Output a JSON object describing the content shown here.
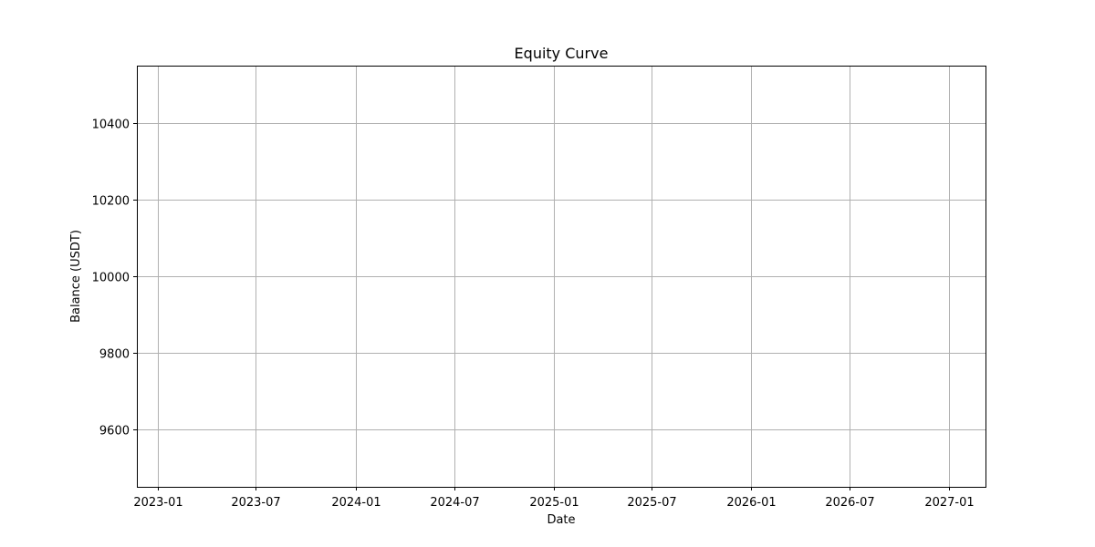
{
  "chart_data": {
    "type": "line",
    "title": "Equity Curve",
    "xlabel": "Date",
    "ylabel": "Balance (USDT)",
    "x_ticks": [
      "2023-01",
      "2023-07",
      "2024-01",
      "2024-07",
      "2025-01",
      "2025-07",
      "2026-01",
      "2026-07",
      "2027-01"
    ],
    "y_ticks": [
      9600,
      9800,
      10000,
      10200,
      10400
    ],
    "xlim": [
      "2022-11-23",
      "2027-03-10"
    ],
    "ylim": [
      9450,
      10550
    ],
    "grid": true,
    "series": [
      {
        "x": [],
        "y": [],
        "color": "#1f77b4"
      }
    ]
  }
}
